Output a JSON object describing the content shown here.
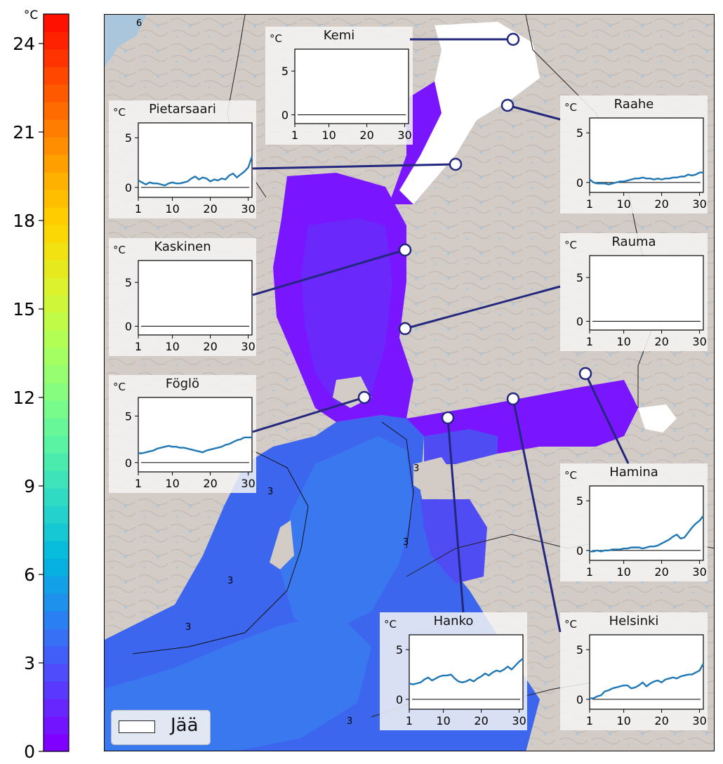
{
  "colorbar": {
    "unit": "°C",
    "min": 0,
    "max": 25,
    "ticks": [
      "0",
      "3",
      "6",
      "9",
      "12",
      "15",
      "18",
      "21",
      "24"
    ],
    "colors": [
      "#7f00ff",
      "#7214ff",
      "#6826fe",
      "#5b38fd",
      "#4f4cfb",
      "#425ef8",
      "#3770f5",
      "#2a80f2",
      "#1e91ec",
      "#12a0e7",
      "#06b0e0",
      "#08bcdb",
      "#16c7d4",
      "#24d1cc",
      "#30dbc3",
      "#3ee3ba",
      "#4bebae",
      "#5af2a3",
      "#68f798",
      "#78fb8b",
      "#86fd7e",
      "#96fe70",
      "#a4ff62",
      "#b2fe55",
      "#c0fb48",
      "#cff73a",
      "#dcf22c",
      "#e6e91e",
      "#f2e212",
      "#fbd805",
      "#ffcc00",
      "#ffbf00",
      "#ffb100",
      "#ffa000",
      "#ff8f00",
      "#ff7d00",
      "#ff6b00",
      "#ff5900",
      "#ff4700",
      "#ff3300",
      "#ff2200",
      "#ff1100"
    ]
  },
  "map": {
    "contour_labels": [
      "6",
      "3",
      "3",
      "3",
      "3",
      "3",
      "3"
    ],
    "colors": {
      "land": "#d2cbc6",
      "sea_top": "#a9c6dc",
      "ice": "#ffffff",
      "water_cold": "#7a16ff",
      "water_1": "#6a28fb",
      "water_2": "#4f4cf4",
      "water_3": "#3d66ef",
      "water_4": "#3a78f0",
      "leader": "#23277e",
      "series": "#1f77b4"
    }
  },
  "legend": {
    "label": "Jää",
    "swatch": "ice"
  },
  "chart_data": [
    {
      "type": "line",
      "title": "Kemi",
      "ylabel": "°C",
      "x": [],
      "series": [],
      "xticks": [
        "1",
        "10",
        "20",
        "30"
      ],
      "yticks": [
        "0",
        "5"
      ],
      "xlim": [
        1,
        31
      ],
      "ylim": [
        -1,
        7.5
      ]
    },
    {
      "type": "line",
      "title": "Pietarsaari",
      "ylabel": "°C",
      "xticks": [
        "1",
        "10",
        "20",
        "30"
      ],
      "yticks": [
        "0",
        "5"
      ],
      "xlim": [
        1,
        31
      ],
      "ylim": [
        -1,
        6.5
      ],
      "x": [
        1,
        2,
        3,
        4,
        5,
        6,
        7,
        8,
        9,
        10,
        11,
        12,
        13,
        14,
        15,
        16,
        17,
        18,
        19,
        20,
        21,
        22,
        23,
        24,
        25,
        26,
        27,
        28,
        29,
        30,
        31
      ],
      "series": [
        {
          "values": [
            0.7,
            0.5,
            0.3,
            0.5,
            0.4,
            0.4,
            0.3,
            0.2,
            0.4,
            0.5,
            0.4,
            0.4,
            0.5,
            0.6,
            0.9,
            1.1,
            0.8,
            1.0,
            0.9,
            0.6,
            0.8,
            0.7,
            0.9,
            0.8,
            1.2,
            1.4,
            1.0,
            1.3,
            1.6,
            2.0,
            3.1
          ]
        }
      ]
    },
    {
      "type": "line",
      "title": "Raahe",
      "ylabel": "°C",
      "xticks": [
        "1",
        "10",
        "20",
        "30"
      ],
      "yticks": [
        "0",
        "5"
      ],
      "xlim": [
        1,
        31
      ],
      "ylim": [
        -1,
        6.5
      ],
      "x": [
        1,
        2,
        3,
        4,
        5,
        6,
        7,
        8,
        9,
        10,
        11,
        12,
        13,
        14,
        15,
        16,
        17,
        18,
        19,
        20,
        21,
        22,
        23,
        24,
        25,
        26,
        27,
        28,
        29,
        30,
        31
      ],
      "series": [
        {
          "values": [
            0.3,
            0.0,
            -0.1,
            -0.1,
            -0.1,
            -0.2,
            -0.1,
            0.0,
            0.1,
            0.1,
            0.2,
            0.3,
            0.4,
            0.4,
            0.5,
            0.4,
            0.4,
            0.3,
            0.4,
            0.3,
            0.4,
            0.4,
            0.5,
            0.5,
            0.6,
            0.6,
            0.8,
            0.7,
            0.8,
            1.0,
            1.0
          ]
        }
      ]
    },
    {
      "type": "line",
      "title": "Kaskinen",
      "ylabel": "°C",
      "x": [],
      "series": [],
      "xticks": [
        "1",
        "10",
        "20",
        "30"
      ],
      "yticks": [
        "0",
        "5"
      ],
      "xlim": [
        1,
        31
      ],
      "ylim": [
        -1,
        7.5
      ]
    },
    {
      "type": "line",
      "title": "Rauma",
      "ylabel": "°C",
      "x": [],
      "series": [],
      "xticks": [
        "1",
        "10",
        "20",
        "30"
      ],
      "yticks": [
        "0",
        "5"
      ],
      "xlim": [
        1,
        31
      ],
      "ylim": [
        -1,
        7.5
      ]
    },
    {
      "type": "line",
      "title": "Föglö",
      "ylabel": "°C",
      "xticks": [
        "1",
        "10",
        "20",
        "30"
      ],
      "yticks": [
        "0",
        "5"
      ],
      "xlim": [
        1,
        31
      ],
      "ylim": [
        -1,
        7
      ],
      "x": [
        1,
        2,
        3,
        4,
        5,
        6,
        7,
        8,
        9,
        10,
        11,
        12,
        13,
        14,
        15,
        16,
        17,
        18,
        19,
        20,
        21,
        22,
        23,
        24,
        25,
        26,
        27,
        28,
        29,
        30,
        31
      ],
      "series": [
        {
          "values": [
            1.0,
            1.0,
            1.1,
            1.2,
            1.3,
            1.5,
            1.6,
            1.7,
            1.8,
            1.7,
            1.7,
            1.6,
            1.6,
            1.5,
            1.4,
            1.3,
            1.2,
            1.1,
            1.3,
            1.4,
            1.5,
            1.6,
            1.7,
            1.9,
            2.0,
            2.2,
            2.4,
            2.5,
            2.7,
            2.7,
            2.7
          ]
        }
      ]
    },
    {
      "type": "line",
      "title": "Hamina",
      "ylabel": "°C",
      "xticks": [
        "1",
        "10",
        "20",
        "30"
      ],
      "yticks": [
        "0",
        "5"
      ],
      "xlim": [
        1,
        31
      ],
      "ylim": [
        -1,
        6.5
      ],
      "x": [
        1,
        2,
        3,
        4,
        5,
        6,
        7,
        8,
        9,
        10,
        11,
        12,
        13,
        14,
        15,
        16,
        17,
        18,
        19,
        20,
        21,
        22,
        23,
        24,
        25,
        26,
        27,
        28,
        29,
        30,
        31
      ],
      "series": [
        {
          "values": [
            -0.1,
            -0.1,
            0.0,
            -0.1,
            0.0,
            0.0,
            0.1,
            0.1,
            0.1,
            0.2,
            0.2,
            0.3,
            0.3,
            0.3,
            0.2,
            0.3,
            0.4,
            0.4,
            0.5,
            0.7,
            0.9,
            1.1,
            1.4,
            1.6,
            1.2,
            1.3,
            1.8,
            2.3,
            2.7,
            3.0,
            3.5
          ]
        }
      ]
    },
    {
      "type": "line",
      "title": "Hanko",
      "ylabel": "°C",
      "xticks": [
        "1",
        "10",
        "20",
        "30"
      ],
      "yticks": [
        "0",
        "5"
      ],
      "xlim": [
        1,
        31
      ],
      "ylim": [
        -1,
        6.5
      ],
      "x": [
        1,
        2,
        3,
        4,
        5,
        6,
        7,
        8,
        9,
        10,
        11,
        12,
        13,
        14,
        15,
        16,
        17,
        18,
        19,
        20,
        21,
        22,
        23,
        24,
        25,
        26,
        27,
        28,
        29,
        30,
        31
      ],
      "series": [
        {
          "values": [
            1.6,
            1.5,
            1.6,
            1.7,
            2.0,
            2.2,
            1.9,
            2.1,
            2.3,
            2.4,
            2.4,
            2.5,
            2.1,
            1.8,
            1.7,
            1.8,
            2.0,
            1.8,
            2.1,
            2.3,
            2.6,
            2.4,
            2.7,
            2.9,
            2.8,
            3.0,
            3.3,
            3.0,
            3.4,
            3.8,
            4.1
          ]
        }
      ]
    },
    {
      "type": "line",
      "title": "Helsinki",
      "ylabel": "°C",
      "xticks": [
        "1",
        "10",
        "20",
        "30"
      ],
      "yticks": [
        "0",
        "5"
      ],
      "xlim": [
        1,
        31
      ],
      "ylim": [
        -1,
        6.5
      ],
      "x": [
        1,
        2,
        3,
        4,
        5,
        6,
        7,
        8,
        9,
        10,
        11,
        12,
        13,
        14,
        15,
        16,
        17,
        18,
        19,
        20,
        21,
        22,
        23,
        24,
        25,
        26,
        27,
        28,
        29,
        30,
        31
      ],
      "series": [
        {
          "values": [
            0.1,
            0.1,
            0.3,
            0.4,
            0.8,
            0.9,
            1.1,
            1.2,
            1.3,
            1.4,
            1.4,
            1.1,
            1.2,
            1.4,
            1.7,
            1.3,
            1.6,
            1.8,
            1.9,
            1.7,
            2.0,
            2.1,
            2.2,
            2.1,
            2.3,
            2.4,
            2.5,
            2.5,
            2.7,
            2.9,
            3.6
          ]
        }
      ]
    }
  ]
}
